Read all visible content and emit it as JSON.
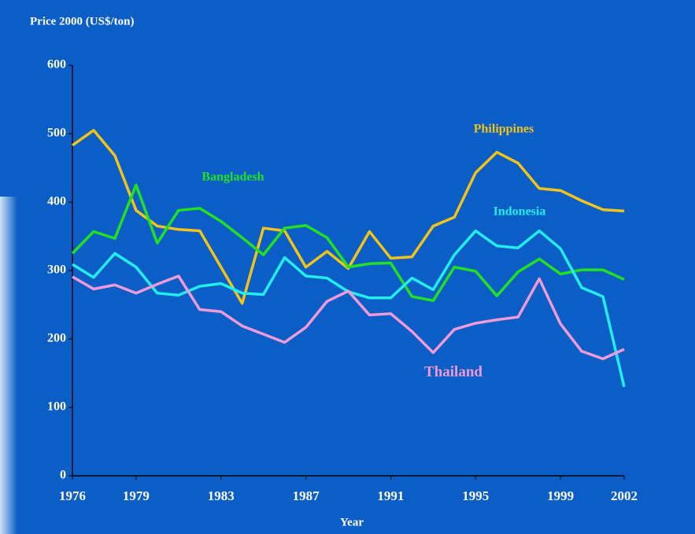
{
  "chart_data": {
    "type": "line",
    "y_label": "Price 2000 (US$/ton)",
    "x_label": "Year",
    "x": [
      1976,
      1977,
      1978,
      1979,
      1980,
      1981,
      1982,
      1983,
      1984,
      1985,
      1986,
      1987,
      1988,
      1989,
      1990,
      1991,
      1992,
      1993,
      1994,
      1995,
      1996,
      1997,
      1998,
      1999,
      2000,
      2001,
      2002
    ],
    "series": [
      {
        "name": "Philippines",
        "color": "#f2c318",
        "values": [
          483,
          505,
          468,
          388,
          365,
          360,
          358,
          305,
          252,
          362,
          358,
          305,
          328,
          303,
          357,
          318,
          320,
          365,
          378,
          443,
          473,
          457,
          420,
          417,
          402,
          389,
          387
        ]
      },
      {
        "name": "Bangladesh",
        "color": "#22e022",
        "values": [
          325,
          357,
          347,
          425,
          340,
          388,
          391,
          372,
          348,
          323,
          362,
          366,
          348,
          305,
          310,
          311,
          262,
          256,
          305,
          299,
          263,
          298,
          317,
          295,
          301,
          301,
          287
        ]
      },
      {
        "name": "Indonesia",
        "color": "#22eef0",
        "values": [
          309,
          290,
          325,
          305,
          267,
          264,
          277,
          281,
          267,
          265,
          319,
          292,
          289,
          269,
          260,
          260,
          289,
          272,
          323,
          358,
          336,
          333,
          358,
          332,
          275,
          262,
          130
        ]
      },
      {
        "name": "Thailand",
        "color": "#f09ad8",
        "values": [
          291,
          273,
          279,
          267,
          280,
          292,
          243,
          240,
          219,
          207,
          195,
          217,
          255,
          270,
          235,
          237,
          211,
          180,
          214,
          223,
          228,
          232,
          288,
          222,
          182,
          171,
          185
        ]
      }
    ],
    "xlim": [
      1976,
      2002
    ],
    "xticks": [
      1976,
      1979,
      1983,
      1987,
      1991,
      1995,
      1999,
      2002
    ],
    "ylim": [
      0,
      600
    ],
    "yticks": [
      0,
      100,
      200,
      300,
      400,
      500,
      600
    ],
    "grid": false
  }
}
